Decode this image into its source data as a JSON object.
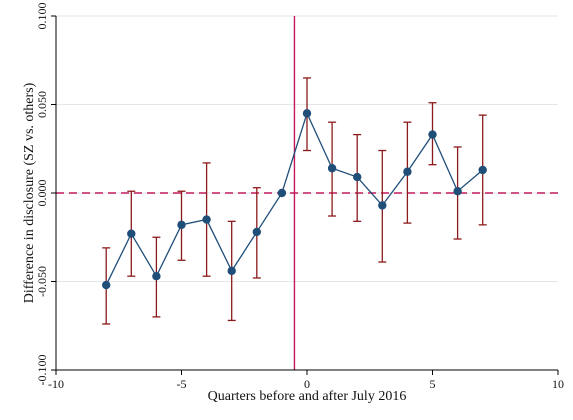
{
  "chart_data": {
    "type": "scatter",
    "title": "",
    "xlabel": "Quarters before and after July 2016",
    "ylabel": "Difference in disclosure (SZ vs. others)",
    "xlim": [
      -10,
      10
    ],
    "ylim": [
      -0.1,
      0.1
    ],
    "xticks": [
      -10,
      -5,
      0,
      5,
      10
    ],
    "xtick_labels": [
      "-10",
      "-5",
      "0",
      "5",
      "10"
    ],
    "yticks": [
      -0.1,
      -0.05,
      0,
      0.05,
      0.1
    ],
    "ytick_labels": [
      "-0.100",
      "-0.050",
      "0.000",
      "0.050",
      "0.100"
    ],
    "grid": true,
    "legend": "none",
    "reference_lines": {
      "vertical_x": -0.5,
      "horizontal_y": 0
    },
    "series": [
      {
        "x": [
          -8,
          -7,
          -6,
          -5,
          -4,
          -3,
          -2,
          -1,
          0,
          1,
          2,
          3,
          4,
          5,
          6,
          7
        ],
        "y": [
          -0.052,
          -0.023,
          -0.047,
          -0.018,
          -0.015,
          -0.044,
          -0.022,
          0.0,
          0.045,
          0.014,
          0.009,
          -0.007,
          0.012,
          0.033,
          0.001,
          0.013
        ],
        "ci_low": [
          -0.074,
          -0.047,
          -0.07,
          -0.038,
          -0.047,
          -0.072,
          -0.048,
          0.0,
          0.024,
          -0.013,
          -0.016,
          -0.039,
          -0.017,
          0.016,
          -0.026,
          -0.018
        ],
        "ci_high": [
          -0.031,
          0.001,
          -0.025,
          0.001,
          0.017,
          -0.016,
          0.003,
          0.0,
          0.065,
          0.04,
          0.033,
          0.024,
          0.04,
          0.051,
          0.026,
          0.044
        ]
      }
    ],
    "colors": {
      "marker": "#1f4e79",
      "line": "#1f4e79",
      "error_bar": "#8b1a1a",
      "reference_line": "#c2185b",
      "grid": "#e6e6e6",
      "axis": "#000000"
    }
  }
}
